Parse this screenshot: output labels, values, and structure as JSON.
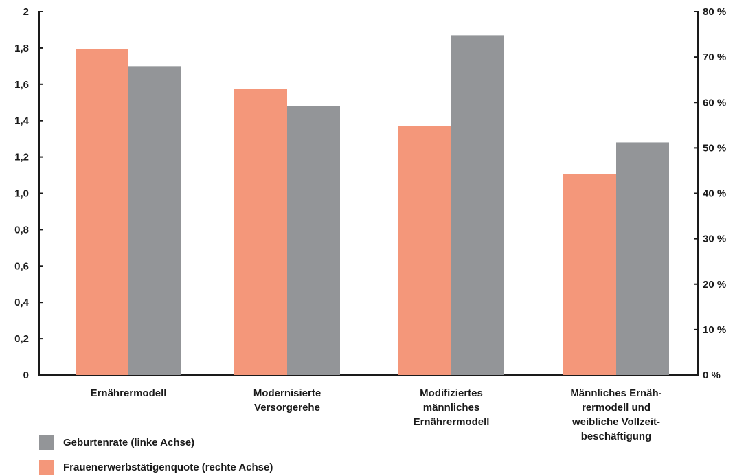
{
  "chart_data": {
    "type": "bar",
    "categories": [
      [
        "Ernährermodell"
      ],
      [
        "Modernisierte",
        "Versorgerehe"
      ],
      [
        "Modifiziertes",
        "männliches",
        "Ernährermodell"
      ],
      [
        "Männliches Ernäh-",
        "rermodell und",
        "weibliche Vollzeit-",
        "beschäftigung"
      ]
    ],
    "series": [
      {
        "name": "Frauenerwerbstätigenquote (rechte Achse)",
        "axis": "right",
        "color": "#f4977a",
        "values": [
          71.8,
          63.0,
          54.8,
          44.3
        ]
      },
      {
        "name": "Geburtenrate (linke Achse)",
        "axis": "left",
        "color": "#939598",
        "values": [
          1.7,
          1.48,
          1.87,
          1.28
        ]
      }
    ],
    "left_axis": {
      "ylim": [
        0,
        2
      ],
      "ticks": [
        "0",
        "0,2",
        "0,4",
        "0,6",
        "0,8",
        "1,0",
        "1,2",
        "1,4",
        "1,6",
        "1,8",
        "2"
      ]
    },
    "right_axis": {
      "ylim": [
        0,
        80
      ],
      "ticks": [
        "0 %",
        "10 %",
        "20 %",
        "30 %",
        "40 %",
        "50 %",
        "60 %",
        "70 %",
        "80 %"
      ]
    },
    "grid": false,
    "legend_position": "bottom-left"
  },
  "legend": [
    {
      "label": "Geburtenrate (linke Achse)",
      "color": "#939598"
    },
    {
      "label": "Frauenerwerbstätigenquote (rechte Achse)",
      "color": "#f4977a"
    }
  ]
}
